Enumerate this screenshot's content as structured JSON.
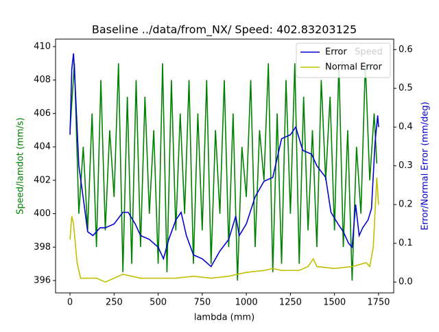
{
  "chart_data": {
    "type": "line",
    "title": "Baseline ../data/from_NX/ Speed: 402.83203125",
    "x_label": "lambda (mm)",
    "y_label": "Speed/lamdot (mm/s)",
    "y2_label": "Error/Normal Error (mm/deg)",
    "xlim": [
      -82,
      1836
    ],
    "ylim": [
      395.26,
      410.45
    ],
    "y2lim": [
      -0.028,
      0.627
    ],
    "xticks": [
      0,
      250,
      500,
      750,
      1000,
      1250,
      1500,
      1750
    ],
    "yticks": [
      396,
      398,
      400,
      402,
      404,
      406,
      408,
      410
    ],
    "y2ticks": [
      {
        "value": 0,
        "label": "0.0"
      },
      0.1,
      0.2,
      0.3,
      0.4,
      0.5,
      0.6
    ],
    "legend": "upper right",
    "series": [
      {
        "name": "Speed",
        "color": "#008000",
        "x": [
          0,
          25,
          50,
          75,
          100,
          125,
          150,
          175,
          200,
          225,
          250,
          275,
          300,
          325,
          350,
          375,
          400,
          425,
          450,
          475,
          500,
          525,
          550,
          575,
          600,
          625,
          650,
          675,
          700,
          725,
          750,
          775,
          800,
          825,
          850,
          875,
          900,
          925,
          950,
          975,
          1000,
          1025,
          1050,
          1075,
          1100,
          1125,
          1150,
          1175,
          1200,
          1225,
          1250,
          1275,
          1300,
          1325,
          1350,
          1375,
          1400,
          1425,
          1450,
          1475,
          1500,
          1525,
          1550,
          1575,
          1600,
          1625,
          1650,
          1675,
          1700,
          1725,
          1740
        ],
        "values": [
          405,
          409,
          400,
          404,
          399,
          406,
          398,
          408,
          399,
          405,
          401,
          409,
          396.5,
          407,
          397,
          408,
          398,
          407,
          400,
          405,
          397,
          409,
          396.5,
          408,
          399,
          406,
          400,
          408,
          397,
          406,
          399,
          408,
          397,
          405,
          400,
          408,
          398,
          406,
          396,
          404,
          401,
          408,
          398,
          405,
          402,
          409,
          396.5,
          406,
          397,
          408,
          400,
          409,
          397,
          407,
          399,
          405,
          398,
          408,
          402,
          407,
          399,
          409,
          398,
          405,
          396,
          404,
          400,
          409,
          402,
          406,
          403
        ]
      },
      {
        "name": "Error",
        "color": "#0000cc",
        "axis": "y2",
        "x": [
          0,
          10,
          20,
          30,
          50,
          80,
          100,
          130,
          170,
          200,
          250,
          300,
          330,
          370,
          400,
          450,
          500,
          530,
          560,
          600,
          630,
          660,
          700,
          750,
          800,
          850,
          900,
          940,
          960,
          1000,
          1050,
          1100,
          1150,
          1200,
          1250,
          1280,
          1320,
          1370,
          1400,
          1450,
          1480,
          1520,
          1550,
          1580,
          1600,
          1620,
          1640,
          1660,
          1690,
          1710,
          1730,
          1745,
          1750
        ],
        "values": [
          0.38,
          0.55,
          0.59,
          0.5,
          0.3,
          0.2,
          0.13,
          0.12,
          0.14,
          0.14,
          0.15,
          0.18,
          0.18,
          0.15,
          0.12,
          0.11,
          0.09,
          0.06,
          0.11,
          0.16,
          0.18,
          0.12,
          0.07,
          0.06,
          0.04,
          0.08,
          0.11,
          0.17,
          0.12,
          0.15,
          0.22,
          0.26,
          0.27,
          0.37,
          0.38,
          0.4,
          0.34,
          0.33,
          0.3,
          0.27,
          0.18,
          0.15,
          0.13,
          0.1,
          0.09,
          0.2,
          0.12,
          0.14,
          0.16,
          0.19,
          0.36,
          0.43,
          0.4
        ]
      },
      {
        "name": "Normal Error",
        "color": "#bfbf00",
        "axis": "y2",
        "x": [
          0,
          10,
          20,
          40,
          60,
          100,
          150,
          200,
          300,
          400,
          500,
          600,
          700,
          800,
          900,
          1000,
          1100,
          1150,
          1200,
          1300,
          1350,
          1380,
          1400,
          1500,
          1600,
          1680,
          1700,
          1720,
          1740,
          1750
        ],
        "values": [
          0.11,
          0.17,
          0.15,
          0.05,
          0.01,
          0.01,
          0.01,
          0.0,
          0.02,
          0.01,
          0.01,
          0.01,
          0.015,
          0.01,
          0.015,
          0.025,
          0.03,
          0.035,
          0.03,
          0.03,
          0.04,
          0.06,
          0.04,
          0.035,
          0.04,
          0.05,
          0.04,
          0.09,
          0.27,
          0.2
        ]
      }
    ]
  }
}
